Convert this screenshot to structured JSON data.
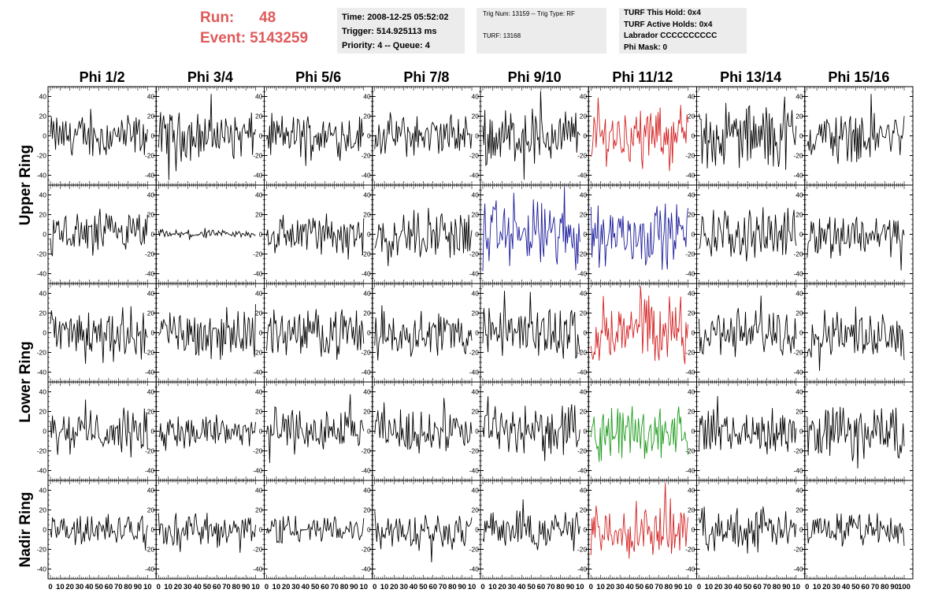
{
  "header": {
    "run_label": "Run:",
    "run_value": "48",
    "event_label": "Event:",
    "event_value": "5143259",
    "time_line": "Time: 2008-12-25 05:52:02",
    "trigger_line": "Trigger: 514.925113 ms",
    "priority_line": "Priority: 4 -- Queue: 4",
    "trig_num_line": "Trig Num: 13159 -- Trig Type: RF",
    "turf_line": "TURF: 13168",
    "turf_hold_line": "TURF This Hold: 0x4",
    "turf_active_line": "TURF Active Holds: 0x4",
    "labrador_line": "Labrador CCCCCCCCCC",
    "phi_mask_line": "Phi Mask: 0"
  },
  "chart_data": {
    "type": "line",
    "columns": [
      "Phi 1/2",
      "Phi 3/4",
      "Phi 5/6",
      "Phi 7/8",
      "Phi 9/10",
      "Phi 11/12",
      "Phi 13/14",
      "Phi 15/16"
    ],
    "ring_labels": [
      {
        "label": "Upper Ring",
        "rows": [
          0,
          1
        ]
      },
      {
        "label": "Lower Ring",
        "rows": [
          2,
          3
        ]
      },
      {
        "label": "Nadir Ring",
        "rows": [
          4
        ]
      }
    ],
    "rows": 5,
    "xlim": [
      0,
      100
    ],
    "ylim": [
      -50,
      50
    ],
    "y_ticks": [
      -40,
      -20,
      0,
      20,
      40
    ],
    "x_tick_labels": [
      "0",
      "10",
      "20",
      "30",
      "40",
      "50",
      "60",
      "70",
      "80",
      "90",
      "100"
    ],
    "x_tick_label_columns": [
      "0",
      "10",
      "20",
      "30",
      "40",
      "50",
      "60",
      "70",
      "80",
      "90",
      "10"
    ],
    "trace_points": 95,
    "default_color": "#000000",
    "colored_traces": [
      {
        "row": 0,
        "col": 5,
        "color": "#d42020"
      },
      {
        "row": 1,
        "col": 4,
        "color": "#1c1c9c"
      },
      {
        "row": 1,
        "col": 5,
        "color": "#1c1c9c"
      },
      {
        "row": 2,
        "col": 5,
        "color": "#d42020"
      },
      {
        "row": 3,
        "col": 5,
        "color": "#1a9a1a"
      },
      {
        "row": 4,
        "col": 5,
        "color": "#d42020"
      }
    ],
    "trace_amplitudes": [
      [
        16,
        18,
        16,
        16,
        22,
        20,
        24,
        18
      ],
      [
        16,
        3,
        16,
        18,
        26,
        24,
        18,
        16
      ],
      [
        18,
        18,
        18,
        18,
        20,
        26,
        18,
        18
      ],
      [
        16,
        14,
        16,
        16,
        18,
        20,
        16,
        20
      ],
      [
        12,
        12,
        12,
        14,
        14,
        20,
        16,
        12
      ]
    ]
  }
}
